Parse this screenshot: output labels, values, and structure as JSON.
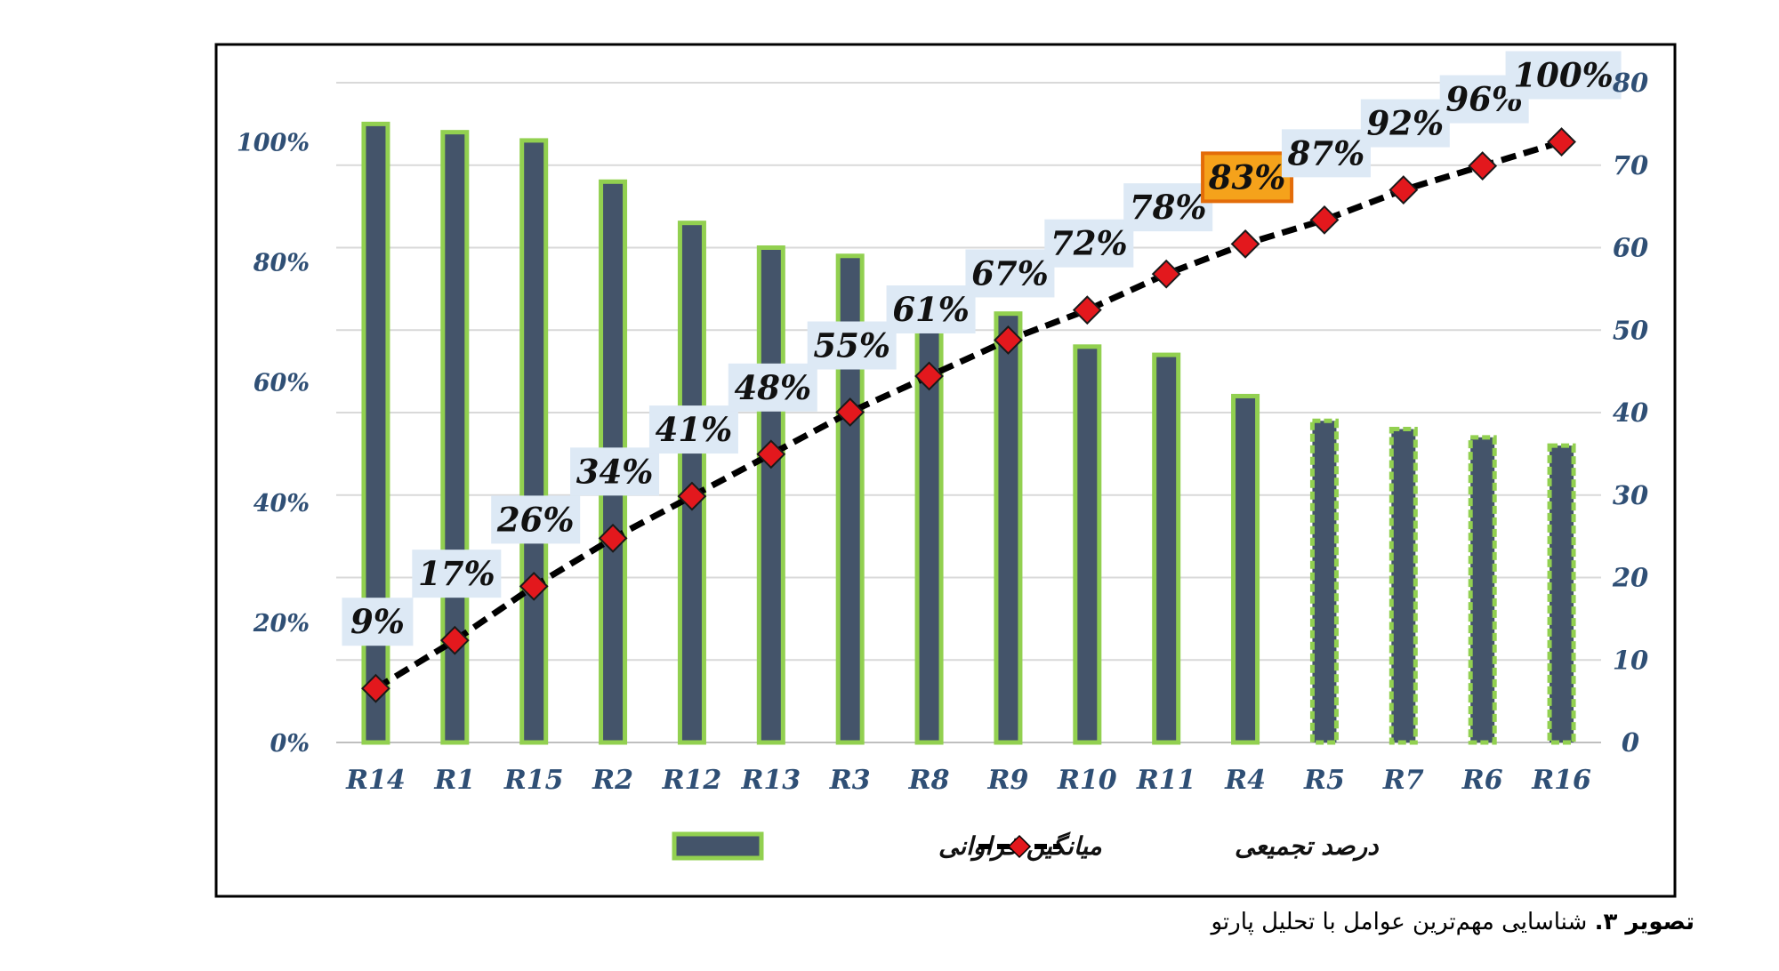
{
  "chart_data": {
    "type": "bar+line",
    "categories": [
      "R14",
      "R1",
      "R15",
      "R2",
      "R12",
      "R13",
      "R3",
      "R8",
      "R9",
      "R10",
      "R11",
      "R4",
      "R5",
      "R7",
      "R6",
      "R16"
    ],
    "series": [
      {
        "name": "میانگین فراوانی",
        "type": "bar",
        "axis": "right",
        "values": [
          75,
          74,
          73,
          68,
          63,
          60,
          59,
          54,
          52,
          48,
          47,
          42,
          39,
          38,
          37,
          36
        ]
      },
      {
        "name": "درصد تجمیعی",
        "type": "line",
        "axis": "left",
        "values": [
          9,
          17,
          26,
          34,
          41,
          48,
          55,
          61,
          67,
          72,
          78,
          83,
          87,
          92,
          96,
          100
        ],
        "data_labels": [
          "9%",
          "17%",
          "26%",
          "34%",
          "41%",
          "48%",
          "55%",
          "61%",
          "67%",
          "72%",
          "78%",
          "83%",
          "87%",
          "92%",
          "96%",
          "100%"
        ],
        "highlighted_label": "83%"
      }
    ],
    "y_left": {
      "ticks": [
        "0%",
        "20%",
        "40%",
        "60%",
        "80%",
        "100%"
      ],
      "ylim": [
        0,
        110
      ]
    },
    "y_right": {
      "ticks": [
        "0",
        "10",
        "20",
        "30",
        "40",
        "50",
        "60",
        "70",
        "80"
      ],
      "ylim": [
        0,
        80
      ]
    },
    "grid": true,
    "legend_position": "bottom",
    "colors": {
      "bar_fill": "#44546a",
      "bar_border": "#92d050",
      "line": "#000000",
      "marker": "#e3181d",
      "label_bg": "#dde9f5",
      "highlight_bg": "#f5a21b",
      "highlight_border": "#e36c09",
      "axis_text": "#2f4f75",
      "grid": "#d9d9d9"
    }
  },
  "caption": {
    "prefix": "تصویر ۳.",
    "text": " شناسایی مهم‌ترین عوامل با تحلیل پارتو"
  }
}
